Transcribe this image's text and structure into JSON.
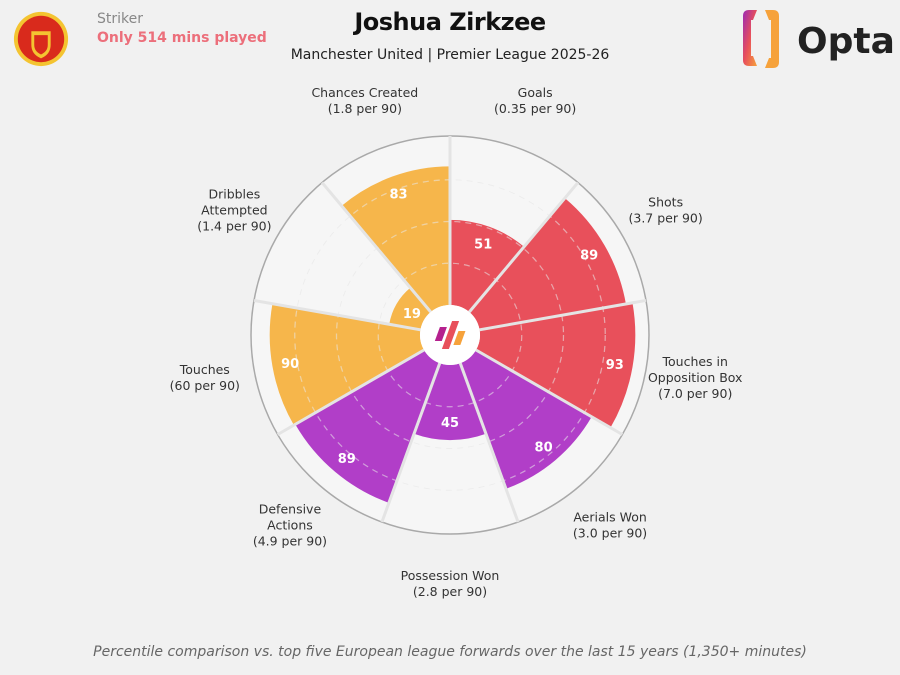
{
  "header": {
    "position": "Striker",
    "minutes_note": "Only 514 mins played",
    "title": "Joshua Zirkzee",
    "subtitle": "Manchester United | Premier League 2025-26",
    "brand": "Opta",
    "club_badge_icon": "manchester-united-crest"
  },
  "footer": "Percentile comparison vs. top five European league forwards over the last 15 years (1,350+ minutes)",
  "chart_data": {
    "type": "pie",
    "subtype": "polar-percentile",
    "range": [
      0,
      100
    ],
    "grid": true,
    "categories": [
      {
        "label": "Goals",
        "sub": "(0.35 per 90)",
        "value": 51,
        "color": "#e8505b"
      },
      {
        "label": "Shots",
        "sub": "(3.7 per 90)",
        "value": 89,
        "color": "#e8505b"
      },
      {
        "label": "Touches in Opposition Box",
        "label_lines": [
          "Touches in",
          "Opposition Box"
        ],
        "sub": "(7.0 per 90)",
        "value": 93,
        "color": "#e8505b"
      },
      {
        "label": "Aerials Won",
        "sub": "(3.0 per 90)",
        "value": 80,
        "color": "#b13ec8"
      },
      {
        "label": "Possession Won",
        "sub": "(2.8 per 90)",
        "value": 45,
        "color": "#b13ec8"
      },
      {
        "label": "Defensive Actions",
        "label_lines": [
          "Defensive",
          "Actions"
        ],
        "sub": "(4.9 per 90)",
        "value": 89,
        "color": "#b13ec8"
      },
      {
        "label": "Touches",
        "sub": "(60 per 90)",
        "value": 90,
        "color": "#f6b64b"
      },
      {
        "label": "Dribbles Attempted",
        "label_lines": [
          "Dribbles",
          "Attempted"
        ],
        "sub": "(1.4 per 90)",
        "value": 19,
        "color": "#f6b64b"
      },
      {
        "label": "Chances Created",
        "sub": "(1.8 per 90)",
        "value": 83,
        "color": "#f6b64b"
      }
    ]
  }
}
